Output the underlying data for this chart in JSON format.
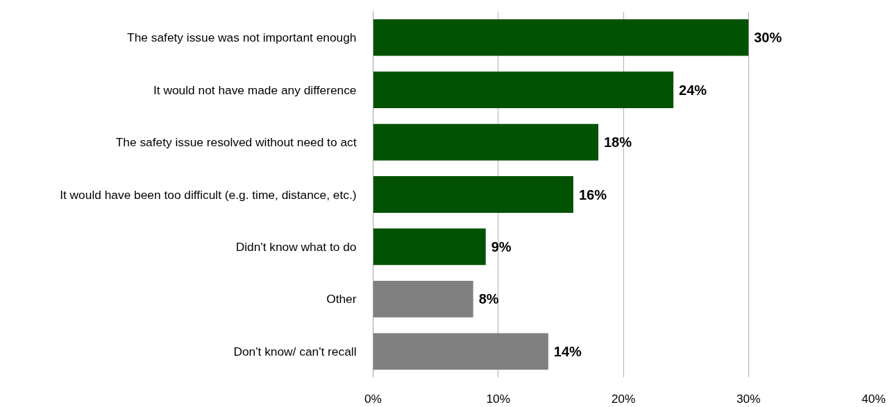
{
  "chart_data": {
    "type": "bar",
    "orientation": "horizontal",
    "categories": [
      "The safety issue was not important enough",
      "It would not have made any difference",
      "The safety issue resolved without need to act",
      "It would have been too difficult (e.g. time, distance, etc.)",
      "Didn't know what to do",
      "Other",
      "Don't know/ can't recall"
    ],
    "values": [
      30,
      24,
      18,
      16,
      9,
      8,
      14
    ],
    "colors": [
      "#035203",
      "#035203",
      "#035203",
      "#035203",
      "#035203",
      "#808080",
      "#808080"
    ],
    "xlim": [
      0,
      40
    ],
    "xticks": [
      {
        "value": 0,
        "label": "0%"
      },
      {
        "value": 10,
        "label": "10%"
      },
      {
        "value": 20,
        "label": "20%"
      },
      {
        "value": 30,
        "label": "30%"
      },
      {
        "value": 40,
        "label": "40%"
      }
    ],
    "value_labels": [
      "30%",
      "24%",
      "18%",
      "16%",
      "9%",
      "8%",
      "14%"
    ],
    "grid": "x"
  }
}
